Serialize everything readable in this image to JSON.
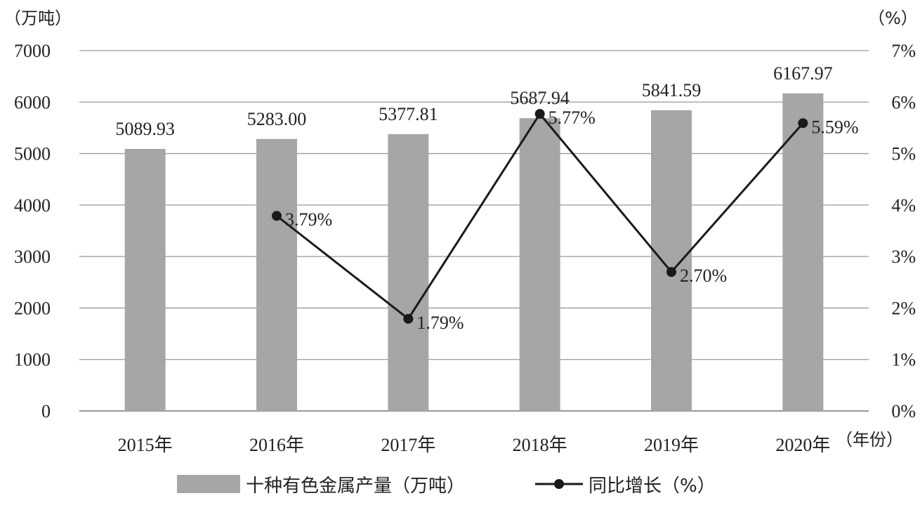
{
  "chart_data": {
    "type": "bar",
    "categories": [
      "2015年",
      "2016年",
      "2017年",
      "2018年",
      "2019年",
      "2020年"
    ],
    "left_axis_unit": "（万吨）",
    "right_axis_unit": "（%）",
    "x_axis_unit": "（年份）",
    "y_ticks": [
      "0",
      "1000",
      "2000",
      "3000",
      "4000",
      "5000",
      "6000",
      "7000"
    ],
    "y2_ticks": [
      "0%",
      "1%",
      "2%",
      "3%",
      "4%",
      "5%",
      "6%",
      "7%"
    ],
    "ylim": [
      0,
      7000
    ],
    "y2lim": [
      0,
      7
    ],
    "grid": true,
    "legend_position": "bottom",
    "series": [
      {
        "name": "十种有色金属产量（万吨）",
        "type": "bar",
        "axis": "left",
        "color": "#a6a6a6",
        "values": [
          5089.93,
          5283.0,
          5377.81,
          5687.94,
          5841.59,
          6167.97
        ],
        "labels": [
          "5089.93",
          "5283.00",
          "5377.81",
          "5687.94",
          "5841.59",
          "6167.97"
        ]
      },
      {
        "name": "同比增长（%）",
        "type": "line",
        "axis": "right",
        "color": "#1a1a1a",
        "values": [
          null,
          3.79,
          1.79,
          5.77,
          2.7,
          5.59
        ],
        "labels": [
          "",
          "3.79%",
          "1.79%",
          "5.77%",
          "2.70%",
          "5.59%"
        ]
      }
    ]
  }
}
